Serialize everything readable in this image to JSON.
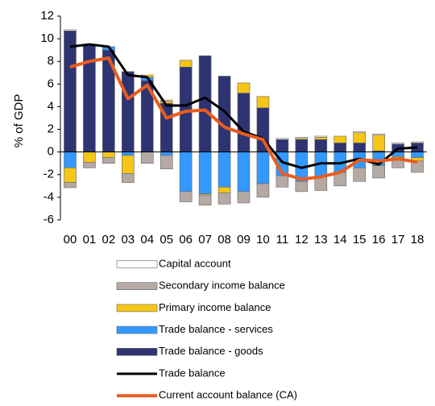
{
  "chart_data": {
    "type": "bar",
    "stacked": true,
    "y_label": "% of GDP",
    "categories": [
      "00",
      "01",
      "02",
      "03",
      "04",
      "05",
      "06",
      "07",
      "08",
      "09",
      "10",
      "11",
      "12",
      "13",
      "14",
      "15",
      "16",
      "17",
      "18"
    ],
    "ylim": [
      -6,
      12
    ],
    "yticks": [
      -6,
      -4,
      -2,
      0,
      2,
      4,
      6,
      8,
      10,
      12
    ],
    "series": [
      {
        "name": "Trade balance - goods",
        "type": "bar",
        "color": "#2e3472",
        "values": [
          10.7,
          9.4,
          9.0,
          7.1,
          6.3,
          4.3,
          7.5,
          8.5,
          6.7,
          5.2,
          3.9,
          1.1,
          1.1,
          1.1,
          0.8,
          0.8,
          0.1,
          0.7,
          0.8
        ]
      },
      {
        "name": "Trade balance - services",
        "type": "bar",
        "color": "#3399ff",
        "values": [
          -1.4,
          0,
          0.3,
          -0.3,
          0.3,
          -0.3,
          -3.5,
          -3.7,
          -3.1,
          -3.5,
          -2.8,
          -2.1,
          -2.6,
          -2.2,
          -1.8,
          -1.4,
          -1.2,
          -0.4,
          -0.5
        ]
      },
      {
        "name": "Primary income balance",
        "type": "bar",
        "color": "#f5c518",
        "values": [
          -1.3,
          -0.9,
          -0.5,
          -1.6,
          0.2,
          0.2,
          0.6,
          -0.1,
          -0.5,
          0.9,
          1.0,
          0,
          0.1,
          0.2,
          0.6,
          0.9,
          1.4,
          -0.1,
          -0.3
        ]
      },
      {
        "name": "Secondary income balance",
        "type": "bar",
        "color": "#b5a9a3",
        "values": [
          -0.45,
          -0.5,
          -0.5,
          -0.8,
          -1.0,
          -1.2,
          -0.9,
          -0.9,
          -1.0,
          -1.0,
          -1.2,
          -1.0,
          -0.9,
          -1.2,
          -1.2,
          -1.2,
          -1.1,
          -0.9,
          -1.0
        ]
      },
      {
        "name": "Capital account",
        "type": "bar",
        "color": "#ffffff",
        "values": [
          0.1,
          0,
          0,
          0,
          0,
          0.1,
          0,
          0,
          0,
          0,
          0,
          0.1,
          0.1,
          0.1,
          0,
          0.1,
          0.1,
          0.1,
          0.1
        ]
      },
      {
        "name": "Trade balance",
        "type": "line",
        "color": "#000000",
        "values": [
          9.3,
          9.5,
          9.3,
          6.8,
          6.6,
          4.1,
          4.1,
          4.8,
          3.6,
          1.8,
          1.2,
          -0.9,
          -1.4,
          -1.0,
          -1.0,
          -0.6,
          -1.1,
          0.3,
          0.4
        ]
      },
      {
        "name": "Current account balance (CA)",
        "type": "line",
        "color": "#e85d1e",
        "values": [
          7.5,
          8.0,
          8.3,
          4.7,
          5.9,
          3.0,
          3.6,
          3.7,
          2.2,
          1.6,
          1.1,
          -1.9,
          -2.4,
          -2.2,
          -1.8,
          -0.7,
          -0.8,
          -0.6,
          -0.9
        ]
      }
    ],
    "legend_order": [
      4,
      3,
      2,
      1,
      0,
      5,
      6
    ]
  }
}
